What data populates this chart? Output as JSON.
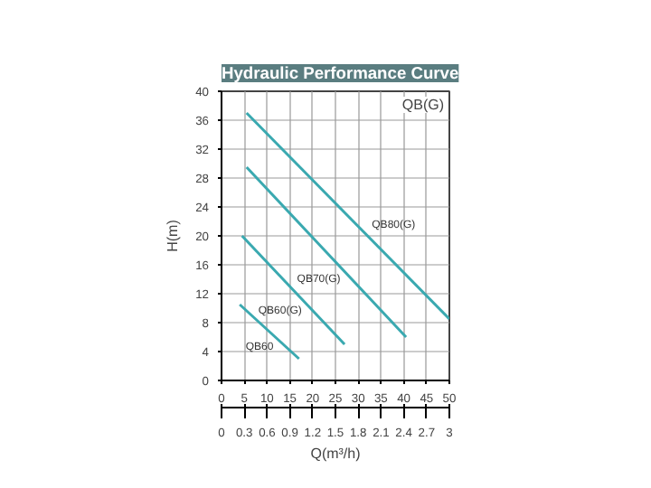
{
  "chart_data": {
    "type": "line",
    "title": "Hydraulic Performance Curve",
    "xlabel": "Q(m³/h)",
    "ylabel": "H(m)",
    "xlim": [
      0,
      50
    ],
    "xticks": [
      0,
      5,
      10,
      15,
      20,
      25,
      30,
      35,
      40,
      45,
      50
    ],
    "x2lim": [
      0,
      3
    ],
    "x2ticks": [
      0,
      0.3,
      0.6,
      0.9,
      1.2,
      1.5,
      1.8,
      2.1,
      2.4,
      2.7,
      3
    ],
    "ylim": [
      0,
      40
    ],
    "yticks": [
      0,
      4,
      8,
      12,
      16,
      20,
      24,
      28,
      32,
      36,
      40
    ],
    "grid": true,
    "marker": "none",
    "line_style": "solid",
    "annotations": [
      "QB(G)"
    ],
    "series": [
      {
        "name": "QB80(G)",
        "color": "#3aa9b0",
        "x": [
          5.5,
          50
        ],
        "values": [
          37,
          8.5
        ]
      },
      {
        "name": "QB70(G)",
        "color": "#3aa9b0",
        "x": [
          5.5,
          40.5
        ],
        "values": [
          29.5,
          6
        ]
      },
      {
        "name": "QB60(G)",
        "color": "#3aa9b0",
        "x": [
          4.5,
          27
        ],
        "values": [
          20,
          5
        ]
      },
      {
        "name": "QB60",
        "color": "#3aa9b0",
        "x": [
          4,
          17
        ],
        "values": [
          10.5,
          3
        ]
      }
    ]
  }
}
